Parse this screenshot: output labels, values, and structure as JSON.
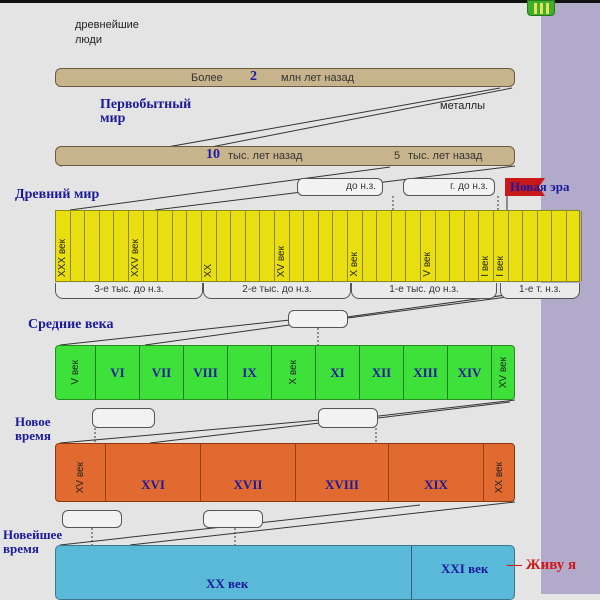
{
  "top": {
    "ancient_people": "древнейшие люди"
  },
  "bar1": {
    "prefix": "Более",
    "number": "2",
    "suffix": "млн лет назад"
  },
  "primitive": {
    "title": "Первобытный мир",
    "metals": "металлы"
  },
  "bar2": {
    "left_number": "10",
    "left_suffix": "тыс. лет назад",
    "right_number": "5",
    "right_suffix": "тыс. лет назад"
  },
  "ancient": {
    "title": "Древний мир",
    "box1": "до н.з.",
    "box2": "г. до н.з.",
    "flag": "Новая эра",
    "column_labels": [
      "XXX век",
      "XXV век",
      "XX",
      "XV век",
      "X век",
      "V век",
      "I век",
      "I век"
    ],
    "brackets": [
      "3-е тыс. до н.з.",
      "2-е тыс. до н.з.",
      "1-е тыс. до н.з.",
      "1-е т. н.з."
    ]
  },
  "middle": {
    "title": "Средние века",
    "cells": [
      "V век",
      "VI",
      "VII",
      "VIII",
      "IX",
      "X век",
      "XI",
      "XII",
      "XIII",
      "XIV",
      "XV век"
    ]
  },
  "modern": {
    "title": "Новое время",
    "cells": [
      "XV век",
      "XVI",
      "XVII",
      "XVIII",
      "XIX",
      "XX век"
    ]
  },
  "contemporary": {
    "title": "Новейшее время",
    "xx": "XX век",
    "xxi": "XXI век",
    "note": "— Живу я"
  },
  "colors": {
    "ancient": "#e9df10",
    "middle": "#3ee03a",
    "modern": "#e06a30",
    "contemporary": "#5ab8d8",
    "flag": "#c81818"
  }
}
